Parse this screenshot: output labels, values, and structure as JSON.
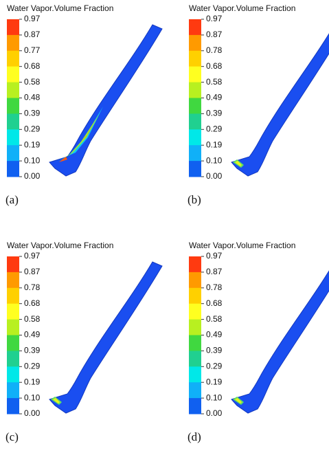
{
  "panels": [
    {
      "label": "(a)",
      "legend": {
        "title": "Water Vapor.Volume Fraction",
        "ticks": [
          "0.97",
          "0.87",
          "0.77",
          "0.68",
          "0.58",
          "0.48",
          "0.39",
          "0.29",
          "0.19",
          "0.10",
          "0.00"
        ]
      }
    },
    {
      "label": "(b)",
      "legend": {
        "title": "Water Vapor.Volume Fraction",
        "ticks": [
          "0.97",
          "0.87",
          "0.78",
          "0.68",
          "0.58",
          "0.49",
          "0.39",
          "0.29",
          "0.19",
          "0.10",
          "0.00"
        ]
      }
    },
    {
      "label": "(c)",
      "legend": {
        "title": "Water Vapor.Volume Fraction",
        "ticks": [
          "0.97",
          "0.87",
          "0.78",
          "0.68",
          "0.58",
          "0.49",
          "0.39",
          "0.29",
          "0.19",
          "0.10",
          "0.00"
        ]
      }
    },
    {
      "label": "(d)",
      "legend": {
        "title": "Water Vapor.Volume Fraction",
        "ticks": [
          "0.97",
          "0.87",
          "0.78",
          "0.68",
          "0.58",
          "0.49",
          "0.39",
          "0.29",
          "0.19",
          "0.10",
          "0.00"
        ]
      }
    }
  ],
  "colorbar": [
    "#ff3a10",
    "#ff9a00",
    "#ffd000",
    "#ffff20",
    "#b8f020",
    "#40d840",
    "#20d090",
    "#00e8e8",
    "#10b0f8",
    "#1060f0"
  ]
}
